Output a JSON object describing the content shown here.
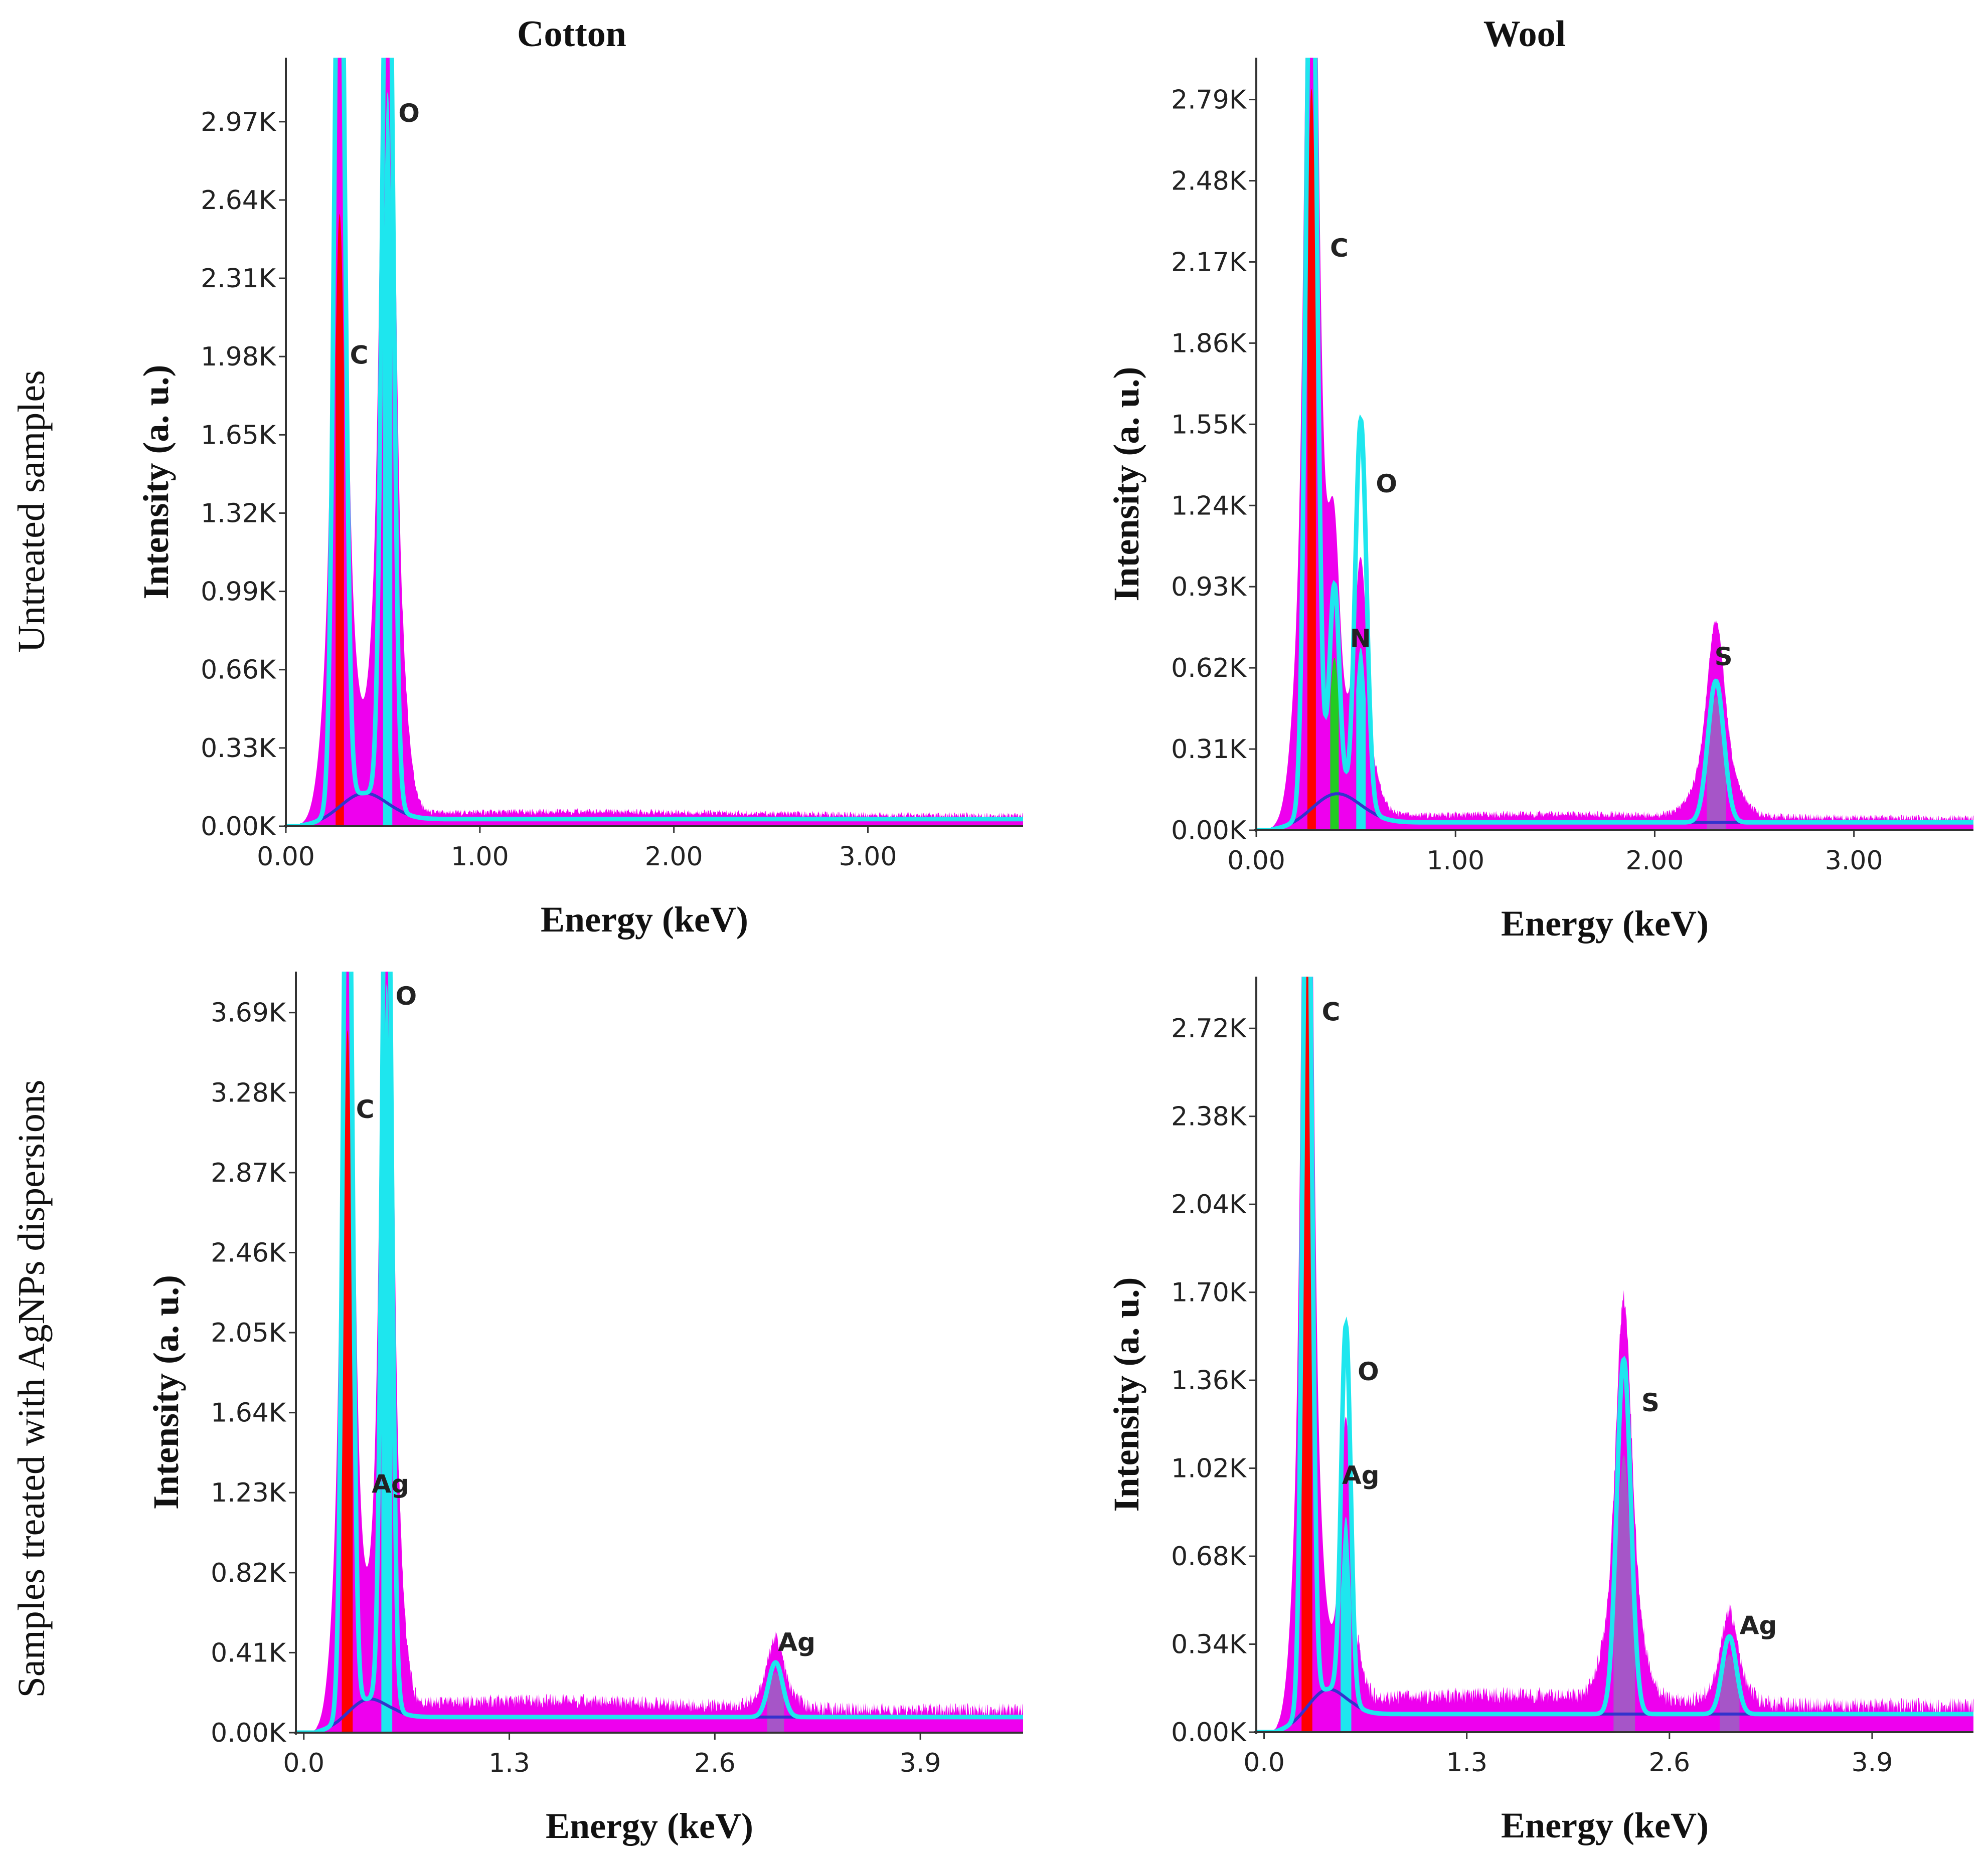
{
  "figure": {
    "column_titles": [
      "Cotton",
      "Wool"
    ],
    "row_labels": [
      "Untreated samples",
      "Samples treated with AgNPs dispersions"
    ]
  },
  "colors": {
    "cyan": "#1ee6ee",
    "magenta": "#ee00ee",
    "red": "#ff0000",
    "purple_fill": "#a655c8",
    "green_fill": "#22cc22",
    "baseline": "#3333cc"
  },
  "chart_data": [
    {
      "type": "area",
      "panel": "cotton-untreated",
      "title": "Cotton",
      "xlabel": "Energy (keV)",
      "ylabel": "Intensity (a. u.)",
      "xlim": [
        0,
        3.8
      ],
      "ylim": [
        0,
        3240
      ],
      "xticks": [
        0,
        1,
        2,
        3
      ],
      "xtick_labels": [
        "0.00",
        "1.00",
        "2.00",
        "3.00"
      ],
      "yticks": [
        0,
        330,
        660,
        990,
        1320,
        1650,
        1980,
        2310,
        2640,
        2970
      ],
      "ytick_labels": [
        "0.00K",
        "0.33K",
        "0.66K",
        "0.99K",
        "1.32K",
        "1.65K",
        "1.98K",
        "2.31K",
        "2.64K",
        "2.97K"
      ],
      "peaks": [
        {
          "element": "C",
          "energy": 0.277,
          "spectrum_height": 4200,
          "element_height": 2500,
          "width": 0.028
        },
        {
          "element": "O",
          "energy": 0.525,
          "spectrum_height": 4200,
          "element_height": 3000,
          "width": 0.028
        }
      ],
      "element_fill_bands": [
        {
          "element": "C",
          "from": 0.255,
          "to": 0.3,
          "color_key": "red"
        },
        {
          "element": "O",
          "from": 0.5,
          "to": 0.55,
          "color_key": "cyan"
        }
      ],
      "background": {
        "level": 30,
        "noise_from": 0.6,
        "noise_to": 3.8
      },
      "labels": [
        {
          "text": "C",
          "x": 0.33,
          "y": 1950
        },
        {
          "text": "O",
          "x": 0.58,
          "y": 2970
        }
      ]
    },
    {
      "type": "area",
      "panel": "wool-untreated",
      "title": "Wool",
      "xlabel": "Energy (keV)",
      "ylabel": "Intensity (a. u.)",
      "xlim": [
        0,
        3.6
      ],
      "ylim": [
        0,
        2950
      ],
      "xticks": [
        0,
        1,
        2,
        3
      ],
      "xtick_labels": [
        "0.00",
        "1.00",
        "2.00",
        "3.00"
      ],
      "yticks": [
        0,
        310,
        620,
        930,
        1240,
        1550,
        1860,
        2170,
        2480,
        2790
      ],
      "ytick_labels": [
        "0.00K",
        "0.31K",
        "0.62K",
        "0.93K",
        "1.24K",
        "1.55K",
        "1.86K",
        "2.17K",
        "2.48K",
        "2.79K"
      ],
      "peaks": [
        {
          "element": "C",
          "energy": 0.277,
          "spectrum_height": 3600,
          "element_height": 2750,
          "width": 0.028
        },
        {
          "element": "N",
          "energy": 0.392,
          "spectrum_height": 800,
          "element_height": 520,
          "width": 0.025
        },
        {
          "element": "O",
          "energy": 0.525,
          "spectrum_height": 1470,
          "element_height": 600,
          "width": 0.028
        },
        {
          "element": "S",
          "energy": 2.307,
          "spectrum_height": 540,
          "element_height": 480,
          "width": 0.04
        }
      ],
      "element_fill_bands": [
        {
          "element": "C",
          "from": 0.255,
          "to": 0.3,
          "color_key": "red"
        },
        {
          "element": "N",
          "from": 0.37,
          "to": 0.415,
          "color_key": "green_fill"
        },
        {
          "element": "O",
          "from": 0.5,
          "to": 0.55,
          "color_key": "cyan"
        },
        {
          "element": "S",
          "from": 2.26,
          "to": 2.36,
          "color_key": "purple_fill"
        }
      ],
      "background": {
        "level": 30,
        "noise_from": 0.6,
        "noise_to": 3.6
      },
      "labels": [
        {
          "text": "C",
          "x": 0.37,
          "y": 2190
        },
        {
          "text": "N",
          "x": 0.47,
          "y": 700
        },
        {
          "text": "O",
          "x": 0.6,
          "y": 1290
        },
        {
          "text": "S",
          "x": 2.3,
          "y": 630
        }
      ]
    },
    {
      "type": "area",
      "panel": "cotton-treated",
      "title": "Cotton",
      "xlabel": "Energy (keV)",
      "ylabel": "Intensity (a. u.)",
      "xlim": [
        -0.05,
        4.55
      ],
      "ylim": [
        0,
        3900
      ],
      "xticks": [
        0,
        1.3,
        2.6,
        3.9
      ],
      "xtick_labels": [
        "0.0",
        "1.3",
        "2.6",
        "3.9"
      ],
      "yticks": [
        0,
        410,
        820,
        1230,
        1640,
        2050,
        2460,
        2870,
        3280,
        3690
      ],
      "ytick_labels": [
        "0.00K",
        "0.41K",
        "0.82K",
        "1.23K",
        "1.64K",
        "2.05K",
        "2.46K",
        "2.87K",
        "3.28K",
        "3.69K"
      ],
      "peaks": [
        {
          "element": "C",
          "energy": 0.277,
          "spectrum_height": 5000,
          "element_height": 3500,
          "width": 0.03
        },
        {
          "element": "O",
          "energy": 0.525,
          "spectrum_height": 5000,
          "element_height": 3700,
          "width": 0.03
        },
        {
          "element": "Ag",
          "energy": 2.984,
          "spectrum_height": 280,
          "element_height": 230,
          "width": 0.045
        }
      ],
      "element_fill_bands": [
        {
          "element": "C",
          "from": 0.24,
          "to": 0.31,
          "color_key": "red"
        },
        {
          "element": "O",
          "from": 0.49,
          "to": 0.56,
          "color_key": "cyan"
        },
        {
          "element": "Ag",
          "from": 2.93,
          "to": 3.04,
          "color_key": "purple_fill"
        }
      ],
      "background": {
        "level": 80,
        "noise_from": 0.6,
        "noise_to": 4.55
      },
      "labels": [
        {
          "text": "C",
          "x": 0.33,
          "y": 3150
        },
        {
          "text": "O",
          "x": 0.58,
          "y": 3730
        },
        {
          "text": "Ag",
          "x": 0.43,
          "y": 1230
        },
        {
          "text": "Ag",
          "x": 3.0,
          "y": 420
        }
      ]
    },
    {
      "type": "area",
      "panel": "wool-treated",
      "title": "Wool",
      "xlabel": "Energy (keV)",
      "ylabel": "Intensity (a. u.)",
      "xlim": [
        -0.05,
        4.55
      ],
      "ylim": [
        0,
        2920
      ],
      "xticks": [
        0,
        1.3,
        2.6,
        3.9
      ],
      "xtick_labels": [
        "0.0",
        "1.3",
        "2.6",
        "3.9"
      ],
      "yticks": [
        0,
        340,
        680,
        1020,
        1360,
        1700,
        2040,
        2380,
        2720
      ],
      "ytick_labels": [
        "0.00K",
        "0.34K",
        "0.68K",
        "1.02K",
        "1.36K",
        "1.70K",
        "2.04K",
        "2.38K",
        "2.72K"
      ],
      "peaks": [
        {
          "element": "C",
          "energy": 0.277,
          "spectrum_height": 3600,
          "element_height": 3000,
          "width": 0.03
        },
        {
          "element": "O",
          "energy": 0.525,
          "spectrum_height": 1440,
          "element_height": 700,
          "width": 0.03
        },
        {
          "element": "S",
          "energy": 2.307,
          "spectrum_height": 1370,
          "element_height": 1000,
          "width": 0.045
        },
        {
          "element": "Ag",
          "energy": 2.984,
          "spectrum_height": 300,
          "element_height": 230,
          "width": 0.045
        }
      ],
      "element_fill_bands": [
        {
          "element": "C",
          "from": 0.24,
          "to": 0.31,
          "color_key": "red"
        },
        {
          "element": "O",
          "from": 0.49,
          "to": 0.56,
          "color_key": "cyan"
        },
        {
          "element": "S",
          "from": 2.24,
          "to": 2.38,
          "color_key": "purple_fill"
        },
        {
          "element": "Ag",
          "from": 2.92,
          "to": 3.05,
          "color_key": "purple_fill"
        }
      ],
      "background": {
        "level": 70,
        "noise_from": 0.6,
        "noise_to": 4.55
      },
      "labels": [
        {
          "text": "C",
          "x": 0.37,
          "y": 2750
        },
        {
          "text": "O",
          "x": 0.6,
          "y": 1360
        },
        {
          "text": "Ag",
          "x": 0.5,
          "y": 960
        },
        {
          "text": "S",
          "x": 2.42,
          "y": 1240
        },
        {
          "text": "Ag",
          "x": 3.05,
          "y": 380
        }
      ]
    }
  ]
}
